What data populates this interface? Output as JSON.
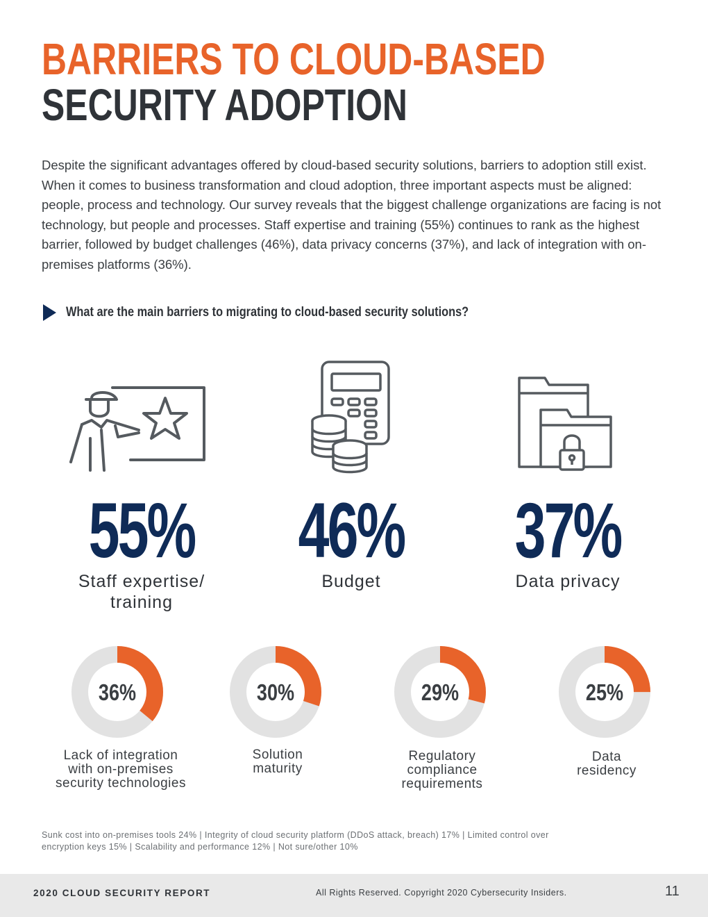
{
  "title": {
    "line1": "BARRIERS TO CLOUD-BASED",
    "line2": "SECURITY ADOPTION"
  },
  "intro": "Despite the significant advantages offered by cloud-based security solutions, barriers to adoption still exist. When it comes to business transformation and cloud adoption, three important aspects must be aligned: people, process and technology. Our survey reveals that the biggest challenge organizations are facing is not technology, but people and processes. Staff expertise and training (55%) continues to rank as the highest barrier, followed by budget challenges (46%), data privacy concerns (37%), and lack of integration with on-premises platforms (36%).",
  "question": "What are the main barriers to migrating to cloud-based security solutions?",
  "colors": {
    "orange": "#e8632a",
    "navy": "#0f2b57",
    "gray_track": "#e2e2e2",
    "icon_stroke": "#555a5f"
  },
  "top_stats": [
    {
      "value": "55%",
      "label_line1": "Staff expertise/",
      "label_line2": "training",
      "icon": "trainer-icon"
    },
    {
      "value": "46%",
      "label_line1": "Budget",
      "label_line2": "",
      "icon": "calculator-coins-icon"
    },
    {
      "value": "37%",
      "label_line1": "Data privacy",
      "label_line2": "",
      "icon": "locked-folder-icon"
    }
  ],
  "chart_data": {
    "type": "donut",
    "title": "What are the main barriers to migrating to cloud-based security solutions?",
    "categories": [
      "Lack of integration with on-premises security technologies",
      "Solution maturity",
      "Regulatory compliance requirements",
      "Data residency"
    ],
    "values": [
      36,
      30,
      29,
      25
    ],
    "value_labels": [
      "36%",
      "30%",
      "29%",
      "25%"
    ],
    "label_lines": [
      [
        "Lack of integration",
        "with on-premises",
        "security technologies"
      ],
      [
        "Solution",
        "maturity"
      ],
      [
        "Regulatory",
        "compliance",
        "requirements"
      ],
      [
        "Data",
        "residency"
      ]
    ],
    "unit": "%"
  },
  "footnote": {
    "line1": "Sunk cost into on-premises tools 24%  |  Integrity of cloud security platform (DDoS attack, breach) 17%  |  Limited control over",
    "line2": "encryption keys 15%  |   Scalability and performance 12%  |   Not sure/other 10%"
  },
  "footer": {
    "report": "2020 CLOUD SECURITY REPORT",
    "copyright": "All Rights Reserved. Copyright 2020 Cybersecurity Insiders.",
    "page": "11"
  }
}
